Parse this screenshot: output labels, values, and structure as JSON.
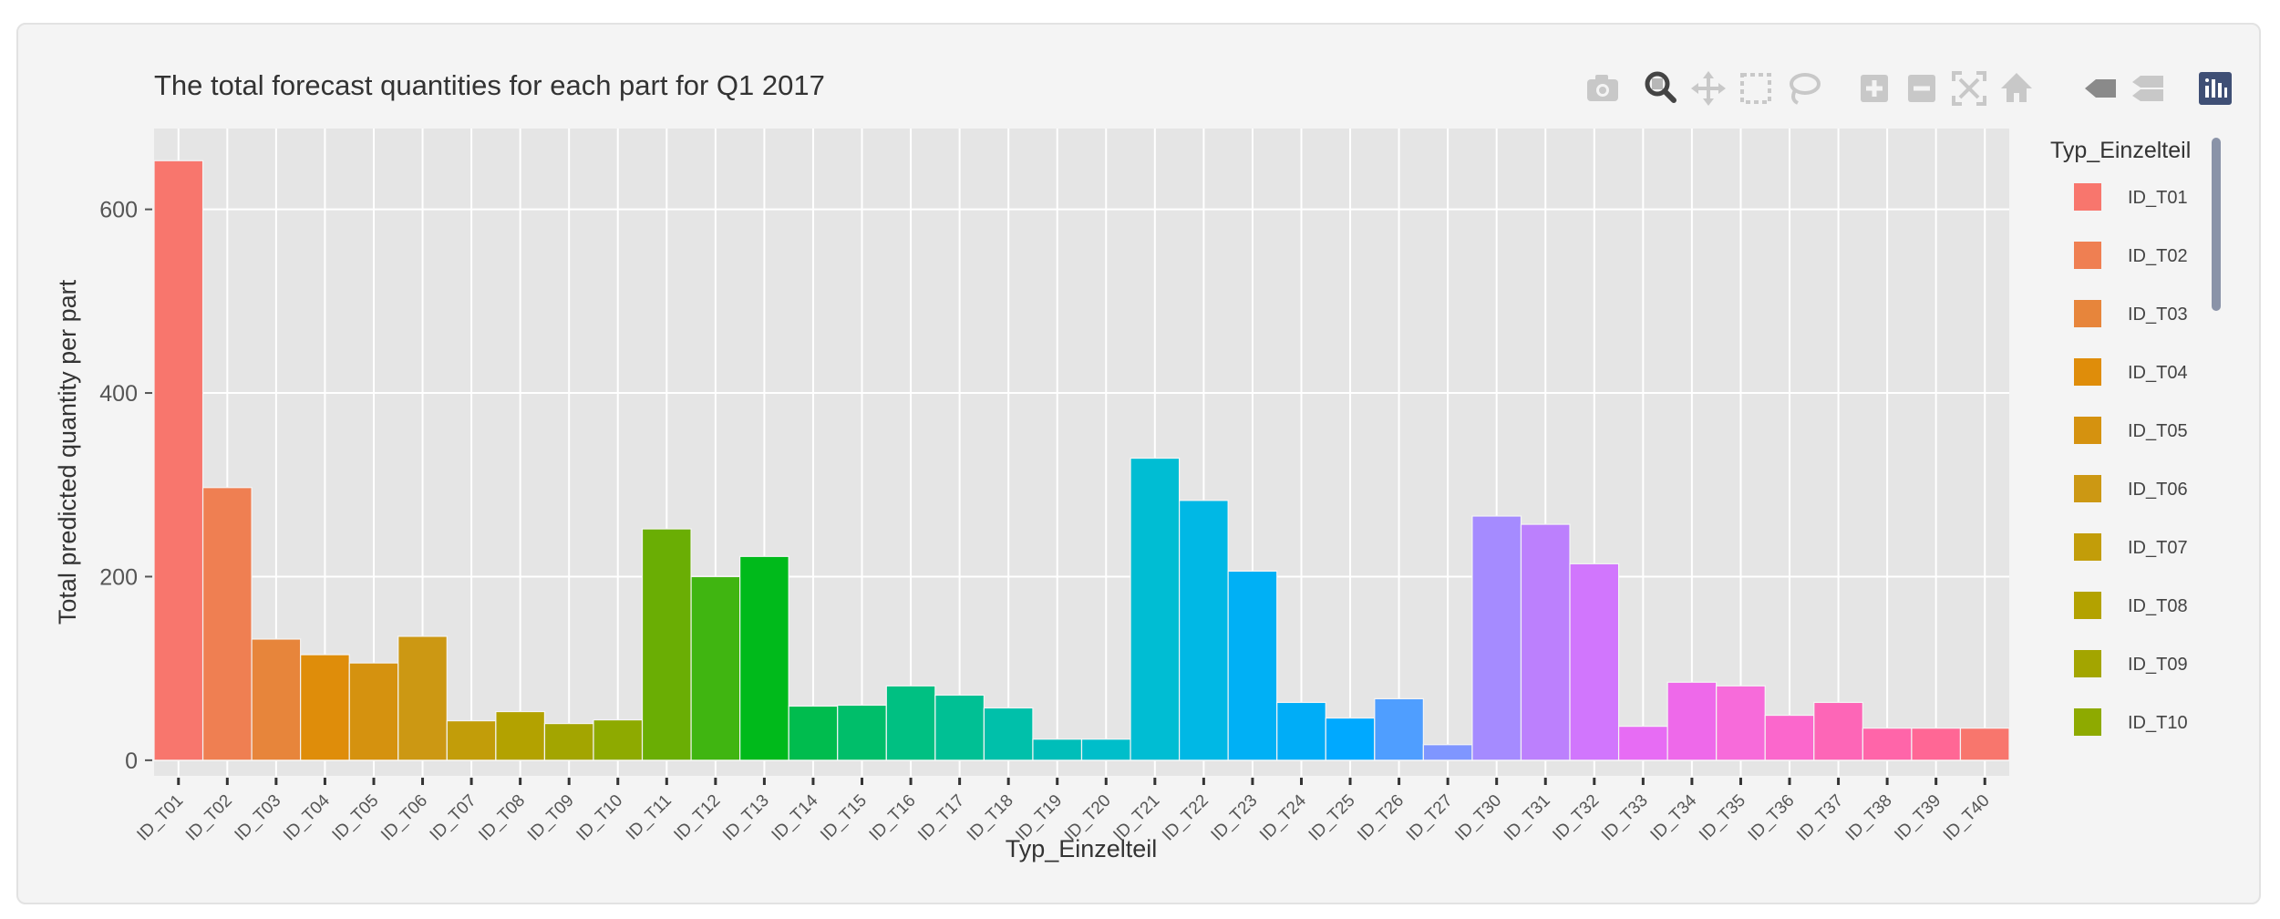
{
  "chart_data": {
    "type": "bar",
    "title": "The total forecast quantities for each part for Q1 2017",
    "xlabel": "Typ_Einzelteil",
    "ylabel": "Total predicted quantity per part",
    "ylim": [
      -17,
      688
    ],
    "yticks": [
      0,
      200,
      400,
      600
    ],
    "grid": true,
    "legend_title": "Typ_Einzelteil",
    "legend_position": "right",
    "categories": [
      "ID_T01",
      "ID_T02",
      "ID_T03",
      "ID_T04",
      "ID_T05",
      "ID_T06",
      "ID_T07",
      "ID_T08",
      "ID_T09",
      "ID_T10",
      "ID_T11",
      "ID_T12",
      "ID_T13",
      "ID_T14",
      "ID_T15",
      "ID_T16",
      "ID_T17",
      "ID_T18",
      "ID_T19",
      "ID_T20",
      "ID_T21",
      "ID_T22",
      "ID_T23",
      "ID_T24",
      "ID_T25",
      "ID_T26",
      "ID_T27",
      "ID_T30",
      "ID_T31",
      "ID_T32",
      "ID_T33",
      "ID_T34",
      "ID_T35",
      "ID_T36",
      "ID_T37",
      "ID_T38",
      "ID_T39",
      "ID_T40"
    ],
    "values": [
      653,
      297,
      132,
      115,
      106,
      135,
      43,
      53,
      40,
      44,
      252,
      200,
      222,
      59,
      60,
      81,
      71,
      57,
      23,
      23,
      329,
      283,
      206,
      63,
      46,
      67,
      17,
      266,
      257,
      214,
      37,
      85,
      81,
      49,
      63,
      35,
      35,
      35
    ],
    "colors": [
      "#F8766D",
      "#EF7F52",
      "#E7853B",
      "#DF8D0A",
      "#D5920F",
      "#CC9813",
      "#C29D09",
      "#B3A200",
      "#A3A500",
      "#8EAA00",
      "#6AAE04",
      "#40B511",
      "#00BA1B",
      "#00BC4E",
      "#00BE6A",
      "#00C082",
      "#00C094",
      "#00C0AA",
      "#00BEB9",
      "#00BECA",
      "#00BDD3",
      "#00B8E5",
      "#00B0F5",
      "#00ADF7",
      "#00A9FF",
      "#4F9EFF",
      "#7F96FF",
      "#A58BFF",
      "#BC80FD",
      "#D176FD",
      "#E76CF4",
      "#EE69EA",
      "#F76BDA",
      "#FB67CC",
      "#FD66B7",
      "#FF65A9",
      "#FF6795",
      "#F8766D"
    ],
    "legend_visible": [
      "ID_T01",
      "ID_T02",
      "ID_T03",
      "ID_T04",
      "ID_T05",
      "ID_T06",
      "ID_T07",
      "ID_T08",
      "ID_T09",
      "ID_T10"
    ]
  },
  "toolbar": [
    {
      "name": "camera-icon"
    },
    {
      "name": "zoom-icon"
    },
    {
      "name": "pan-icon"
    },
    {
      "name": "box-select-icon"
    },
    {
      "name": "lasso-icon"
    },
    {
      "name": "zoom-in-icon"
    },
    {
      "name": "zoom-out-icon"
    },
    {
      "name": "autoscale-icon"
    },
    {
      "name": "reset-axes-icon"
    },
    {
      "name": "hover-closest-icon"
    },
    {
      "name": "hover-compare-icon"
    },
    {
      "name": "plotly-logo-icon"
    }
  ],
  "colors": {
    "panel_bg": "#e5e5e5",
    "card_bg": "#f4f4f4",
    "grid": "#ffffff",
    "tool_active": "#444444",
    "tool_inactive": "#c8c8c8",
    "logo": "#3f4f75",
    "scrollbar": "#8a93a8"
  }
}
